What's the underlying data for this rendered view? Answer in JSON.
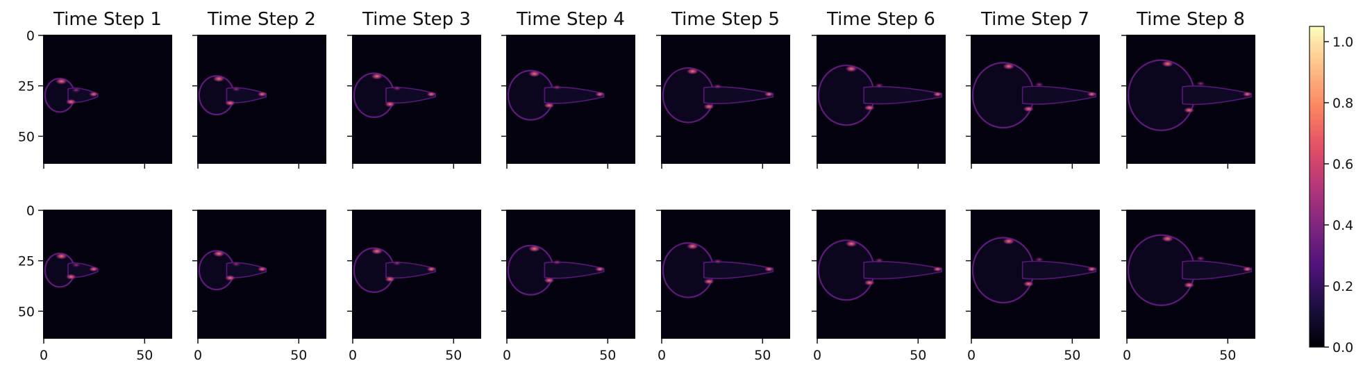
{
  "chart_data": {
    "type": "heatmap",
    "colormap": "magma",
    "panel_titles": [
      "Time Step 1",
      "Time Step 2",
      "Time Step 3",
      "Time Step 4",
      "Time Step 5",
      "Time Step 6",
      "Time Step 7",
      "Time Step 8"
    ],
    "rows": 2,
    "columns": 8,
    "image_extent": {
      "x": [
        0,
        64
      ],
      "y": [
        0,
        64
      ]
    },
    "x_ticks": [
      0,
      50
    ],
    "y_ticks": [
      0,
      25,
      50
    ],
    "y_inverted": true,
    "colorbar": {
      "range": [
        0.0,
        1.05
      ],
      "ticks": [
        "0.0",
        "0.2",
        "0.4",
        "0.6",
        "0.8",
        "1.0"
      ]
    },
    "grid": false
  }
}
